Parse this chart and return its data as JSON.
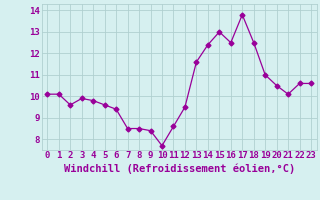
{
  "x": [
    0,
    1,
    2,
    3,
    4,
    5,
    6,
    7,
    8,
    9,
    10,
    11,
    12,
    13,
    14,
    15,
    16,
    17,
    18,
    19,
    20,
    21,
    22,
    23
  ],
  "y": [
    10.1,
    10.1,
    9.6,
    9.9,
    9.8,
    9.6,
    9.4,
    8.5,
    8.5,
    8.4,
    7.7,
    8.6,
    9.5,
    11.6,
    12.4,
    13.0,
    12.5,
    13.8,
    12.5,
    11.0,
    10.5,
    10.1,
    10.6,
    10.6
  ],
  "line_color": "#990099",
  "marker": "D",
  "marker_size": 2.5,
  "bg_color": "#d6f0f0",
  "grid_color": "#b0d0d0",
  "xlabel": "Windchill (Refroidissement éolien,°C)",
  "ylim": [
    7.5,
    14.3
  ],
  "xlim": [
    -0.5,
    23.5
  ],
  "yticks": [
    8,
    9,
    10,
    11,
    12,
    13,
    14
  ],
  "xticks": [
    0,
    1,
    2,
    3,
    4,
    5,
    6,
    7,
    8,
    9,
    10,
    11,
    12,
    13,
    14,
    15,
    16,
    17,
    18,
    19,
    20,
    21,
    22,
    23
  ],
  "tick_label_color": "#990099",
  "tick_label_fontsize": 6.5,
  "xlabel_fontsize": 7.5,
  "xlabel_color": "#990099",
  "xlabel_fontweight": "bold"
}
